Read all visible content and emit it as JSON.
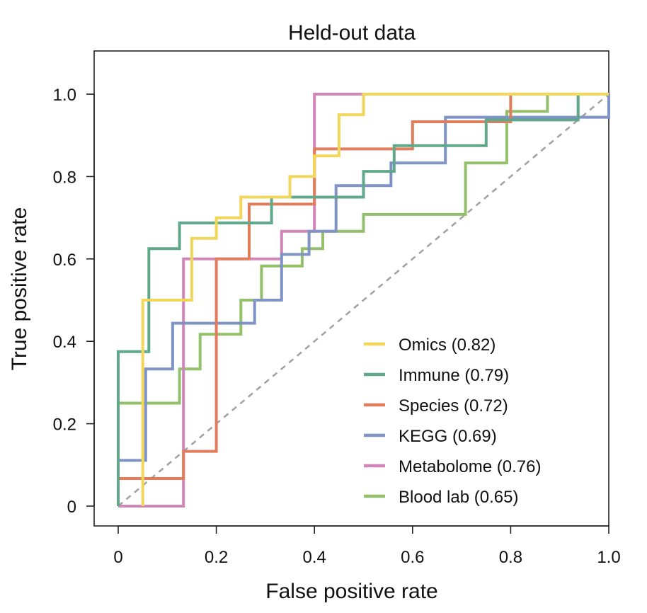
{
  "chart_data": {
    "type": "line",
    "title": "Held-out data",
    "xlabel": "False positive rate",
    "ylabel": "True positive rate",
    "xlim": [
      -0.05,
      1.0
    ],
    "ylim": [
      -0.05,
      1.1
    ],
    "xticks": [
      0,
      0.2,
      0.4,
      0.6,
      0.8,
      1.0
    ],
    "xtick_labels": [
      "0",
      "0.2",
      "0.4",
      "0.6",
      "0.8",
      "1.0"
    ],
    "yticks": [
      0,
      0.2,
      0.4,
      0.6,
      0.8,
      1.0
    ],
    "ytick_labels": [
      "0",
      "0.2",
      "0.4",
      "0.6",
      "0.8",
      "1.0"
    ],
    "legend_position": "bottom-right",
    "reference_line": {
      "x": [
        0,
        1
      ],
      "y": [
        0,
        1
      ],
      "style": "dashed",
      "color": "#a0a0a0"
    },
    "series": [
      {
        "name": "Omics (0.82)",
        "color": "#f2d65a",
        "x": [
          0.05,
          0.05,
          0.05,
          0.15,
          0.15,
          0.2,
          0.2,
          0.25,
          0.25,
          0.35,
          0.35,
          0.4,
          0.4,
          0.45,
          0.45,
          0.5,
          0.5,
          1.0
        ],
        "y": [
          0,
          0.1,
          0.5,
          0.5,
          0.65,
          0.65,
          0.7,
          0.7,
          0.75,
          0.75,
          0.8,
          0.8,
          0.85,
          0.85,
          0.95,
          0.95,
          1.0,
          1.0
        ]
      },
      {
        "name": "Immune (0.79)",
        "color": "#5fa88a",
        "x": [
          0,
          0,
          0.0625,
          0.0625,
          0.125,
          0.125,
          0.3125,
          0.3125,
          0.5,
          0.5,
          0.5625,
          0.5625,
          0.75,
          0.75,
          0.9375,
          0.9375,
          1.0
        ],
        "y": [
          0,
          0.375,
          0.375,
          0.625,
          0.625,
          0.6875,
          0.6875,
          0.75,
          0.75,
          0.8125,
          0.8125,
          0.875,
          0.875,
          0.9375,
          0.9375,
          1.0,
          1.0
        ]
      },
      {
        "name": "Species (0.72)",
        "color": "#e07d5c",
        "x": [
          0,
          0,
          0.133,
          0.133,
          0.2,
          0.2,
          0.267,
          0.267,
          0.4,
          0.4,
          0.6,
          0.6,
          0.8,
          0.8,
          1.0
        ],
        "y": [
          0,
          0.067,
          0.067,
          0.133,
          0.133,
          0.6,
          0.6,
          0.733,
          0.733,
          0.867,
          0.867,
          0.933,
          0.933,
          1.0,
          1.0
        ]
      },
      {
        "name": "KEGG (0.69)",
        "color": "#7f93c4",
        "x": [
          0,
          0,
          0.056,
          0.056,
          0.111,
          0.111,
          0.278,
          0.278,
          0.333,
          0.333,
          0.389,
          0.389,
          0.444,
          0.444,
          0.556,
          0.556,
          0.667,
          0.667,
          1.0,
          1.0
        ],
        "y": [
          0,
          0.111,
          0.111,
          0.333,
          0.333,
          0.444,
          0.444,
          0.5,
          0.5,
          0.611,
          0.611,
          0.667,
          0.667,
          0.778,
          0.778,
          0.833,
          0.833,
          0.944,
          0.944,
          1.0
        ]
      },
      {
        "name": "Metabolome (0.76)",
        "color": "#d086b8",
        "x": [
          0,
          0.133,
          0.133,
          0.333,
          0.333,
          0.4,
          0.4,
          1.0
        ],
        "y": [
          0,
          0,
          0.6,
          0.6,
          0.667,
          0.667,
          1.0,
          1.0
        ]
      },
      {
        "name": "Blood lab (0.65)",
        "color": "#93c06a",
        "x": [
          0,
          0,
          0.125,
          0.125,
          0.167,
          0.167,
          0.25,
          0.25,
          0.292,
          0.292,
          0.375,
          0.375,
          0.417,
          0.417,
          0.5,
          0.5,
          0.708,
          0.708,
          0.792,
          0.792,
          0.875,
          0.875,
          1.0
        ],
        "y": [
          0,
          0.25,
          0.25,
          0.333,
          0.333,
          0.417,
          0.417,
          0.5,
          0.5,
          0.583,
          0.583,
          0.625,
          0.625,
          0.667,
          0.667,
          0.708,
          0.708,
          0.833,
          0.833,
          0.958,
          0.958,
          1.0,
          1.0
        ]
      }
    ]
  }
}
